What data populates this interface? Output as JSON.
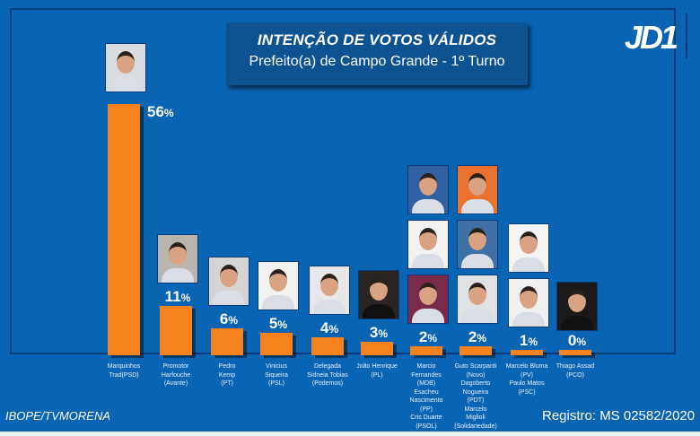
{
  "header": {
    "title": "INTENÇÃO DE VOTOS VÁLIDOS",
    "subtitle": "Prefeito(a) de Campo Grande - 1º Turno",
    "logo": "JD1"
  },
  "footer": {
    "source": "IBOPE/TVMORENA",
    "registry": "Registro: MS 02582/2020"
  },
  "colors": {
    "background": "#0a64b4",
    "bar": "#f5821f",
    "title_box": "#0d5291"
  },
  "chart_data": {
    "type": "bar",
    "title": "INTENÇÃO DE VOTOS VÁLIDOS",
    "subtitle": "Prefeito(a) de Campo Grande - 1º Turno",
    "xlabel": "",
    "ylabel": "",
    "ylim": [
      0,
      56
    ],
    "grid": false,
    "unit": "%",
    "categories": [
      [
        "Marquinhos",
        "Trad(PSD)"
      ],
      [
        "Promotor",
        "Harfouche",
        "(Avante)"
      ],
      [
        "Pedro",
        "Kemp",
        "(PT)"
      ],
      [
        "Vinicius",
        "Siqueira",
        "(PSL)"
      ],
      [
        "Delegada",
        "Sidneia Tobias",
        "(Podemos)"
      ],
      [
        "João Henrique",
        "(PL)"
      ],
      [
        "Marcio",
        "Fernandes",
        "(MDB)",
        "Esacheu",
        "Nascimento",
        "(PP)",
        "Cris Duarte",
        "(PSOL)"
      ],
      [
        "Guto Scarpanti",
        "(Novo)",
        "Dagoberto",
        "Nogueira",
        "(PDT)",
        "Marcelo",
        "Miglioli",
        "(Solidariedade)"
      ],
      [
        "Marcelo Bluma",
        "(PV)",
        "Paulo Matos",
        "(PSC)"
      ],
      [
        "Thiago Assad",
        "(PCO)"
      ]
    ],
    "values": [
      56,
      11,
      6,
      5,
      4,
      3,
      2,
      2,
      1,
      0
    ],
    "value_labels": [
      "56",
      "11",
      "6",
      "5",
      "4",
      "3",
      "2",
      "2",
      "1",
      "0"
    ],
    "photos_per_bar": [
      1,
      1,
      1,
      1,
      1,
      1,
      3,
      3,
      2,
      1
    ]
  }
}
